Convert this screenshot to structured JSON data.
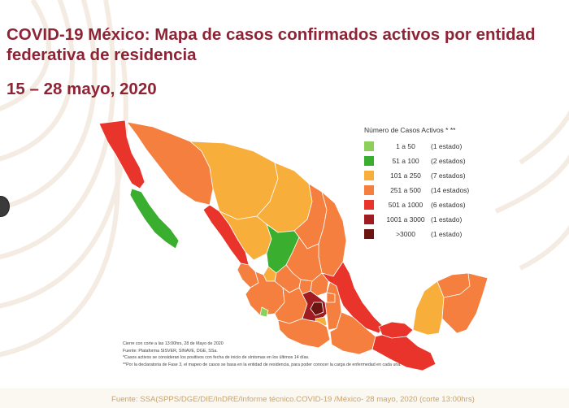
{
  "header": {
    "title": "COVID-19 México: Mapa de casos confirmados activos por entidad federativa de residencia",
    "date_range": "15 – 28 mayo, 2020"
  },
  "legend": {
    "title": "Número de Casos Activos * **",
    "items": [
      {
        "range": "1 a 50",
        "count": "(1 estado)",
        "color": "#8ccf5a"
      },
      {
        "range": "51 a 100",
        "count": "(2 estados)",
        "color": "#3aae2e"
      },
      {
        "range": "101 a 250",
        "count": "(7 estados)",
        "color": "#f7ae3a"
      },
      {
        "range": "251 a 500",
        "count": "(14 estados)",
        "color": "#f47f3f"
      },
      {
        "range": "501 a 1000",
        "count": "(6 estados)",
        "color": "#e8342b"
      },
      {
        "range": "1001 a 3000",
        "count": "(1 estado)",
        "color": "#a01c22"
      },
      {
        "range": ">3000",
        "count": "(1 estado)",
        "color": "#6b1410"
      }
    ]
  },
  "notes": [
    "Cierre con corte a las 13:00hrs, 28 de Mayo de 2020",
    "Fuente: Plataforma SISVER, SINAVE, DGE, SSa.",
    "*Casos activos se consideran los positivos con fecha de inicio de síntomas en los últimos 14 días.",
    "**Por la declaratoria de Fase 3, el mapeo de casos se basa en la entidad de residencia, para poder conocer la carga de enfermedad en cada una."
  ],
  "footer": {
    "source": "Fuente: SSA(SPPS/DGE/DIE/InDRE/Informe técnico.COVID-19 /México- 28 mayo, 2020 (corte 13:00hrs)"
  },
  "colors": {
    "title": "#8e2336",
    "footer": "#c9a46c"
  }
}
